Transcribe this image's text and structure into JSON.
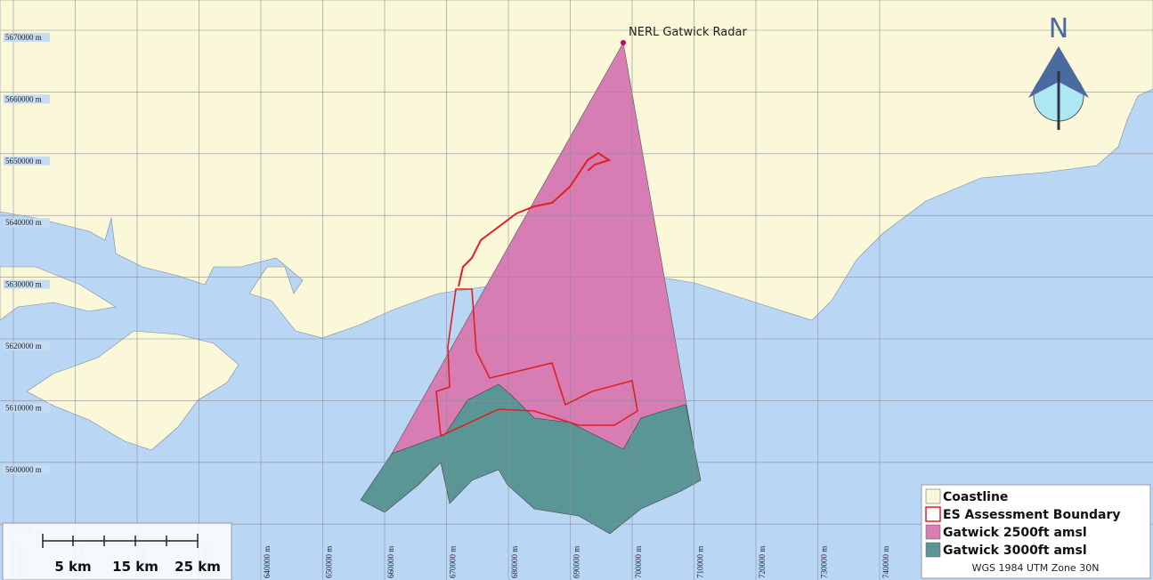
{
  "grid": {
    "x_labels": [
      "600000 m",
      "610000 m",
      "620000 m",
      "630000 m",
      "640000 m",
      "650000 m",
      "660000 m",
      "670000 m",
      "680000 m",
      "690000 m",
      "700000 m",
      "710000 m",
      "720000 m",
      "730000 m",
      "740000 m"
    ],
    "y_labels": [
      "5670000 m",
      "5660000 m",
      "5650000 m",
      "5640000 m",
      "5630000 m",
      "5620000 m",
      "5610000 m",
      "5600000 m",
      "5590000 m"
    ]
  },
  "annotation": "NERL Gatwick Radar",
  "north": "N",
  "legend": {
    "items": [
      {
        "label": "Coastline",
        "color": "#fbf7d9"
      },
      {
        "label": "ES Assessment Boundary",
        "color": "#e02020"
      },
      {
        "label": "Gatwick 2500ft amsl",
        "color": "#d77db4"
      },
      {
        "label": "Gatwick 3000ft amsl",
        "color": "#5b9696"
      }
    ]
  },
  "scale_bar": {
    "labels": [
      "5 km",
      "15 km",
      "25 km"
    ]
  },
  "projection": "WGS 1984 UTM Zone 30N"
}
